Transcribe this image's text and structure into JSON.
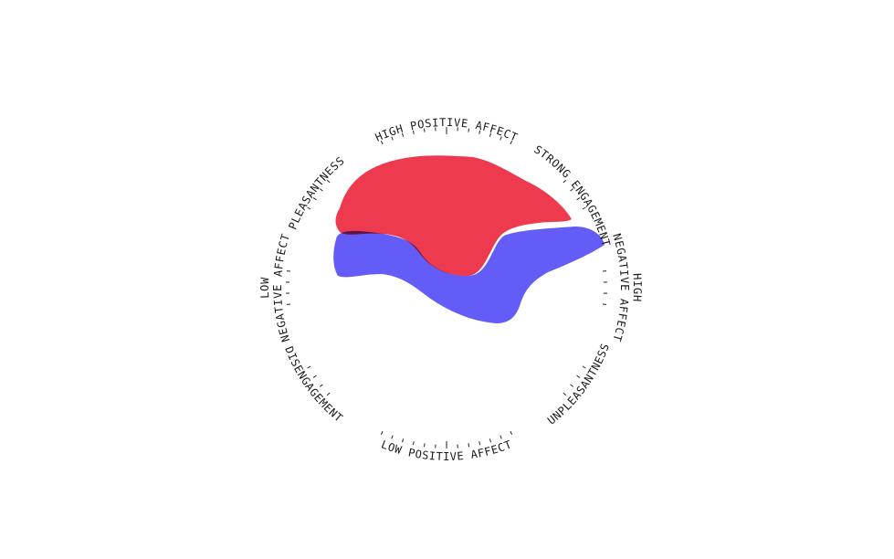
{
  "diagram": {
    "labels": {
      "high_positive_affect": "HIGH POSITIVE AFFECT",
      "strong_engagement": "STRONG ENGAGEMENT",
      "high_negative_affect_line1": "HIGH",
      "high_negative_affect_line2": "NEGATIVE AFFECT",
      "unpleasantness": "UNPLEASANTNESS",
      "low_positive_affect": "LOW POSITIVE AFFECT",
      "disengagement": "DISENGAGEMENT",
      "low_negative_affect_line1": "LOW",
      "low_negative_affect_line2": "NEGATIVE AFFECT",
      "pleasantness": "PLEASANTNESS"
    },
    "colors": {
      "red_area": "#ee3a4f",
      "blue_area": "#645cf7",
      "overlap": "#5e154c",
      "ticks": "#222222"
    }
  }
}
